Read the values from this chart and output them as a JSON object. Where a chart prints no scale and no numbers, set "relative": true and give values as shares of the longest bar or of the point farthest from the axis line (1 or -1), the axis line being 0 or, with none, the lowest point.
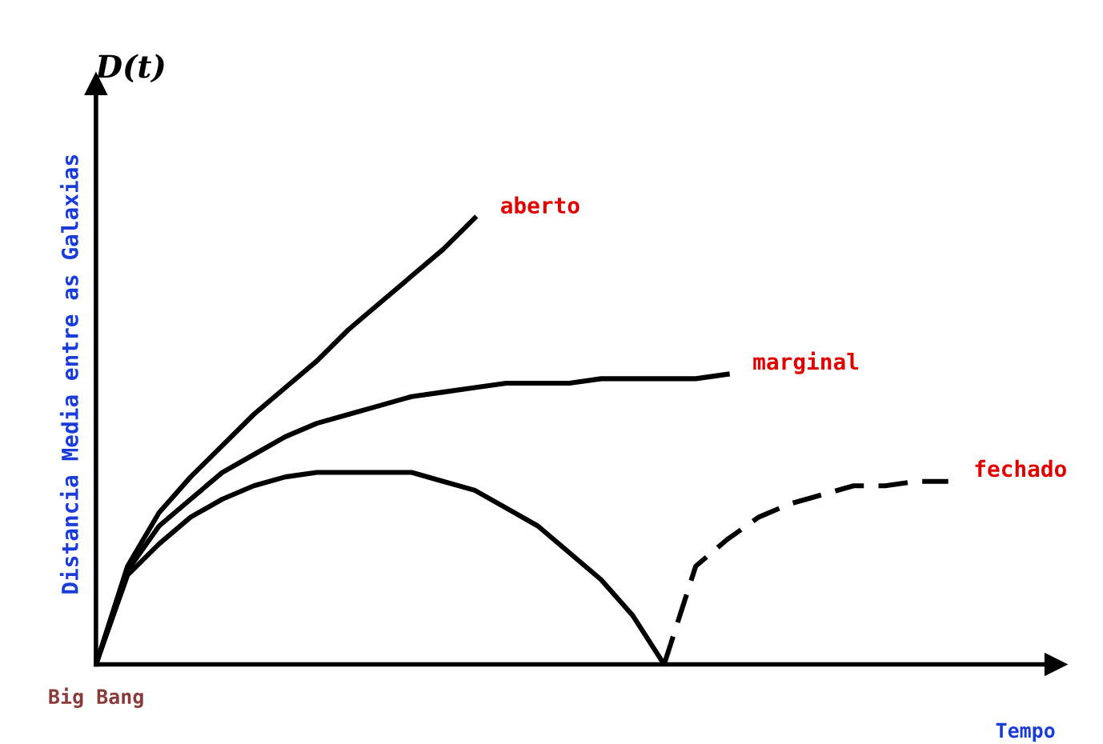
{
  "chart_data": {
    "type": "line",
    "relative": true,
    "xlabel": "Tempo",
    "ylabel": "Distancia Media entre as Galaxias",
    "annotations": [
      "D(t)",
      "Big Bang"
    ],
    "categories": [
      null,
      null,
      null,
      null,
      null,
      null,
      null,
      null,
      null,
      null,
      null,
      null,
      null,
      null,
      null,
      null,
      null,
      null,
      null,
      null,
      null,
      null,
      null,
      null,
      null,
      null,
      null,
      null,
      null,
      null,
      null
    ],
    "series": [
      {
        "name": "aberto",
        "color": "#000000",
        "values": [
          0,
          0.22,
          0.34,
          0.42,
          0.49,
          0.56,
          0.62,
          0.68,
          0.75,
          0.81,
          0.87,
          0.93,
          1.0,
          null,
          null,
          null,
          null,
          null,
          null,
          null,
          null,
          null,
          null,
          null,
          null,
          null,
          null,
          null,
          null,
          null,
          null
        ]
      },
      {
        "name": "marginal",
        "color": "#000000",
        "values": [
          0,
          0.21,
          0.31,
          0.37,
          0.43,
          0.47,
          0.51,
          0.54,
          0.56,
          0.58,
          0.6,
          0.61,
          0.62,
          0.63,
          0.63,
          0.63,
          0.64,
          0.64,
          0.64,
          0.64,
          0.65,
          null,
          null,
          null,
          null,
          null,
          null,
          null,
          null,
          null,
          null
        ]
      },
      {
        "color": "#000000",
        "values": [
          0,
          0.2,
          0.27,
          0.33,
          0.37,
          0.4,
          0.42,
          0.43,
          0.43,
          0.43,
          0.43,
          0.41,
          0.39,
          0.35,
          0.31,
          0.25,
          0.19,
          0.11,
          0,
          null,
          null,
          null,
          null,
          null,
          null,
          null,
          null,
          null,
          null,
          null,
          null
        ]
      },
      {
        "name": "fechado",
        "color": "#000000",
        "line_style": "dashed",
        "values": [
          null,
          null,
          null,
          null,
          null,
          null,
          null,
          null,
          null,
          null,
          null,
          null,
          null,
          null,
          null,
          null,
          null,
          null,
          0,
          0.22,
          0.28,
          0.33,
          0.36,
          0.38,
          0.4,
          0.4,
          0.41,
          0.41,
          null,
          null,
          null
        ]
      }
    ]
  }
}
